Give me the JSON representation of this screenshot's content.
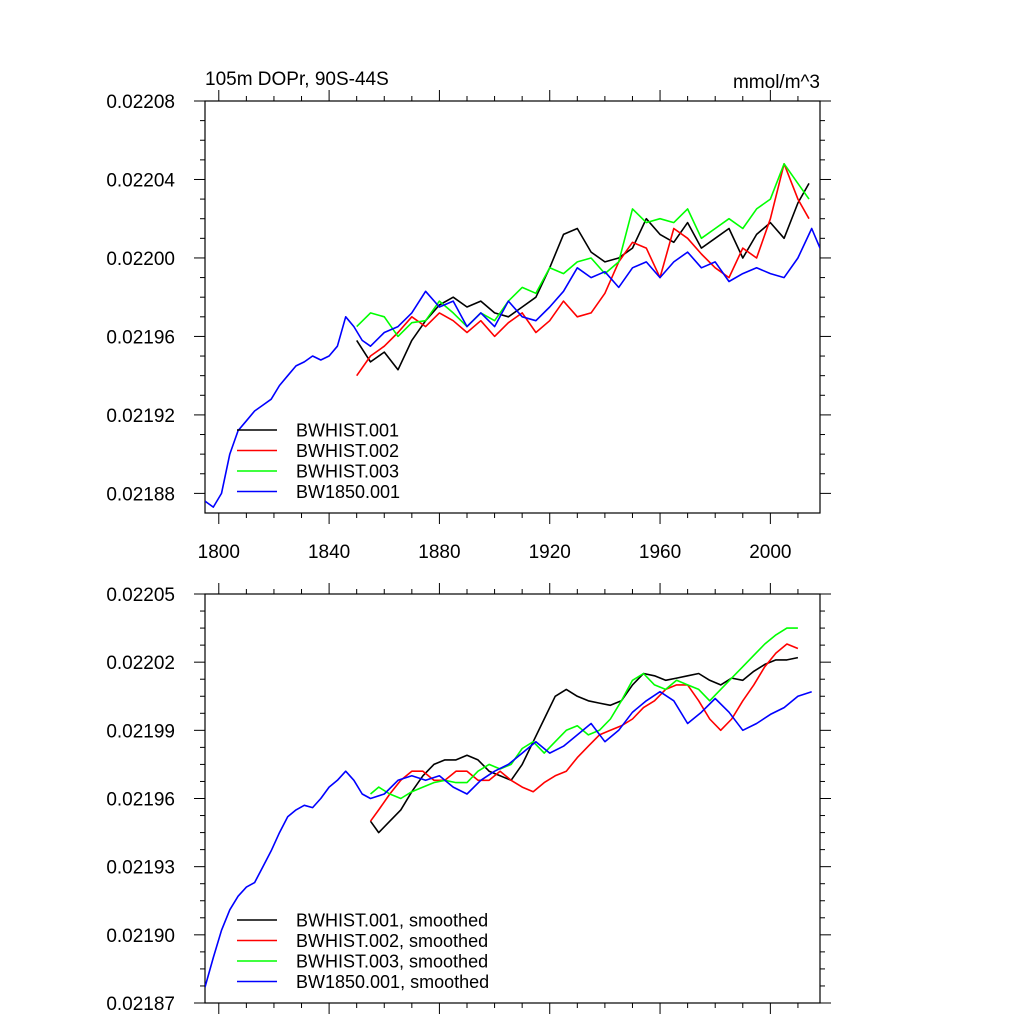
{
  "chart_data": [
    {
      "type": "line",
      "title_left": "105m DOPr, 90S-44S",
      "title_right": "mmol/m^3",
      "xlim": [
        1795,
        2018
      ],
      "ylim": [
        0.02187,
        0.02208
      ],
      "x_ticks": [
        1800,
        1840,
        1880,
        1920,
        1960,
        2000
      ],
      "y_ticks": [
        0.02188,
        0.02192,
        0.02196,
        0.022,
        0.02204,
        0.02208
      ],
      "y_tick_labels": [
        "0.02188",
        "0.02192",
        "0.02196",
        "0.02200",
        "0.02204",
        "0.02208"
      ],
      "legend_position": "bottom-left",
      "series": [
        {
          "name": "BWHIST.001",
          "color": "#000000",
          "x": [
            1850,
            1855,
            1860,
            1865,
            1870,
            1875,
            1880,
            1885,
            1890,
            1895,
            1900,
            1905,
            1910,
            1915,
            1920,
            1925,
            1930,
            1935,
            1940,
            1945,
            1950,
            1955,
            1960,
            1965,
            1970,
            1975,
            1980,
            1985,
            1990,
            1995,
            2000,
            2005,
            2010,
            2014
          ],
          "y": [
            0.021958,
            0.021947,
            0.021952,
            0.021943,
            0.021958,
            0.021968,
            0.021976,
            0.02198,
            0.021975,
            0.021978,
            0.021972,
            0.02197,
            0.021975,
            0.02198,
            0.021995,
            0.022012,
            0.022015,
            0.022003,
            0.021998,
            0.022,
            0.022005,
            0.02202,
            0.022012,
            0.022008,
            0.022018,
            0.022005,
            0.02201,
            0.022015,
            0.022,
            0.022012,
            0.022018,
            0.02201,
            0.022028,
            0.022038
          ]
        },
        {
          "name": "BWHIST.002",
          "color": "#ff0000",
          "x": [
            1850,
            1855,
            1860,
            1865,
            1870,
            1875,
            1880,
            1885,
            1890,
            1895,
            1900,
            1905,
            1910,
            1915,
            1920,
            1925,
            1930,
            1935,
            1940,
            1945,
            1950,
            1955,
            1960,
            1965,
            1970,
            1975,
            1980,
            1985,
            1990,
            1995,
            2000,
            2005,
            2010,
            2014
          ],
          "y": [
            0.02194,
            0.02195,
            0.021955,
            0.021962,
            0.02197,
            0.021965,
            0.021972,
            0.021968,
            0.021962,
            0.021968,
            0.02196,
            0.021967,
            0.021972,
            0.021962,
            0.021968,
            0.021978,
            0.02197,
            0.021972,
            0.021982,
            0.021998,
            0.022008,
            0.022005,
            0.02199,
            0.022015,
            0.02201,
            0.022002,
            0.021995,
            0.02199,
            0.022005,
            0.022,
            0.02202,
            0.022048,
            0.02203,
            0.02202
          ]
        },
        {
          "name": "BWHIST.003",
          "color": "#00ff00",
          "x": [
            1850,
            1855,
            1860,
            1865,
            1870,
            1875,
            1880,
            1885,
            1890,
            1895,
            1900,
            1905,
            1910,
            1915,
            1920,
            1925,
            1930,
            1935,
            1940,
            1945,
            1950,
            1955,
            1960,
            1965,
            1970,
            1975,
            1980,
            1985,
            1990,
            1995,
            2000,
            2005,
            2010,
            2014
          ],
          "y": [
            0.021965,
            0.021972,
            0.02197,
            0.02196,
            0.021967,
            0.021968,
            0.021978,
            0.021972,
            0.021965,
            0.021972,
            0.021968,
            0.021978,
            0.021985,
            0.021982,
            0.021995,
            0.021992,
            0.021998,
            0.022,
            0.021992,
            0.021998,
            0.022025,
            0.022018,
            0.02202,
            0.022018,
            0.022025,
            0.02201,
            0.022015,
            0.02202,
            0.022015,
            0.022025,
            0.02203,
            0.022048,
            0.022038,
            0.02203
          ]
        },
        {
          "name": "BW1850.001",
          "color": "#0000ff",
          "x": [
            1795,
            1798,
            1801,
            1804,
            1807,
            1810,
            1813,
            1816,
            1819,
            1822,
            1825,
            1828,
            1831,
            1834,
            1837,
            1840,
            1843,
            1846,
            1849,
            1852,
            1855,
            1860,
            1865,
            1870,
            1875,
            1880,
            1885,
            1890,
            1895,
            1900,
            1905,
            1910,
            1915,
            1920,
            1925,
            1930,
            1935,
            1940,
            1945,
            1950,
            1955,
            1960,
            1965,
            1970,
            1975,
            1980,
            1985,
            1990,
            1995,
            2000,
            2005,
            2010,
            2015,
            2018
          ],
          "y": [
            0.021876,
            0.021873,
            0.02188,
            0.0219,
            0.021912,
            0.021917,
            0.021922,
            0.021925,
            0.021928,
            0.021935,
            0.02194,
            0.021945,
            0.021947,
            0.02195,
            0.021948,
            0.02195,
            0.021955,
            0.02197,
            0.021965,
            0.021958,
            0.021955,
            0.021962,
            0.021965,
            0.021972,
            0.021983,
            0.021975,
            0.021978,
            0.021965,
            0.021972,
            0.021965,
            0.021978,
            0.02197,
            0.021968,
            0.021975,
            0.021983,
            0.021995,
            0.02199,
            0.021993,
            0.021985,
            0.021995,
            0.021998,
            0.02199,
            0.021998,
            0.022003,
            0.021995,
            0.021998,
            0.021988,
            0.021992,
            0.021995,
            0.021992,
            0.02199,
            0.022,
            0.022015,
            0.022005
          ]
        }
      ]
    },
    {
      "type": "line",
      "xlim": [
        1795,
        2018
      ],
      "ylim": [
        0.02187,
        0.02205
      ],
      "x_ticks": [
        1800,
        1840,
        1880,
        1920,
        1960,
        2000
      ],
      "y_ticks": [
        0.02187,
        0.0219,
        0.02193,
        0.02196,
        0.02199,
        0.02202,
        0.02205
      ],
      "y_tick_labels": [
        "0.02187",
        "0.02190",
        "0.02193",
        "0.02196",
        "0.02199",
        "0.02202",
        "0.02205"
      ],
      "legend_position": "bottom-left",
      "series": [
        {
          "name": "BWHIST.001, smoothed",
          "color": "#000000",
          "x": [
            1855,
            1858,
            1862,
            1866,
            1870,
            1874,
            1878,
            1882,
            1886,
            1890,
            1894,
            1898,
            1902,
            1906,
            1910,
            1914,
            1918,
            1922,
            1926,
            1930,
            1934,
            1938,
            1942,
            1946,
            1950,
            1954,
            1958,
            1962,
            1966,
            1970,
            1974,
            1978,
            1982,
            1986,
            1990,
            1994,
            1998,
            2002,
            2006,
            2010
          ],
          "y": [
            0.02195,
            0.021945,
            0.02195,
            0.021955,
            0.021963,
            0.02197,
            0.021975,
            0.021977,
            0.021977,
            0.021979,
            0.021977,
            0.021972,
            0.02197,
            0.021968,
            0.021975,
            0.021985,
            0.021995,
            0.022005,
            0.022008,
            0.022005,
            0.022003,
            0.022002,
            0.022001,
            0.022003,
            0.02201,
            0.022015,
            0.022014,
            0.022012,
            0.022013,
            0.022014,
            0.022015,
            0.022012,
            0.02201,
            0.022013,
            0.022012,
            0.022016,
            0.022019,
            0.022021,
            0.022021,
            0.022022
          ]
        },
        {
          "name": "BWHIST.002, smoothed",
          "color": "#ff0000",
          "x": [
            1855,
            1858,
            1862,
            1866,
            1870,
            1874,
            1878,
            1882,
            1886,
            1890,
            1894,
            1898,
            1902,
            1906,
            1910,
            1914,
            1918,
            1922,
            1926,
            1930,
            1934,
            1938,
            1942,
            1946,
            1950,
            1954,
            1958,
            1962,
            1966,
            1970,
            1974,
            1978,
            1982,
            1986,
            1990,
            1994,
            1998,
            2002,
            2006,
            2010
          ],
          "y": [
            0.02195,
            0.021955,
            0.021962,
            0.021968,
            0.021972,
            0.021972,
            0.021968,
            0.021968,
            0.021972,
            0.021972,
            0.021968,
            0.021968,
            0.021972,
            0.021968,
            0.021965,
            0.021963,
            0.021967,
            0.02197,
            0.021972,
            0.021978,
            0.021983,
            0.021988,
            0.02199,
            0.021992,
            0.021995,
            0.022,
            0.022003,
            0.022008,
            0.02201,
            0.02201,
            0.022003,
            0.021995,
            0.02199,
            0.021995,
            0.022003,
            0.02201,
            0.022018,
            0.022024,
            0.022028,
            0.022026
          ]
        },
        {
          "name": "BWHIST.003, smoothed",
          "color": "#00ff00",
          "x": [
            1855,
            1858,
            1862,
            1866,
            1870,
            1874,
            1878,
            1882,
            1886,
            1890,
            1894,
            1898,
            1902,
            1906,
            1910,
            1914,
            1918,
            1922,
            1926,
            1930,
            1934,
            1938,
            1942,
            1946,
            1950,
            1954,
            1958,
            1962,
            1966,
            1970,
            1974,
            1978,
            1982,
            1986,
            1990,
            1994,
            1998,
            2002,
            2006,
            2010
          ],
          "y": [
            0.021962,
            0.021965,
            0.021962,
            0.02196,
            0.021963,
            0.021965,
            0.021967,
            0.021968,
            0.021967,
            0.021967,
            0.021972,
            0.021975,
            0.021973,
            0.021975,
            0.021982,
            0.021985,
            0.02198,
            0.021985,
            0.02199,
            0.021992,
            0.021988,
            0.02199,
            0.021995,
            0.022003,
            0.022012,
            0.022015,
            0.02201,
            0.022008,
            0.022012,
            0.02201,
            0.022008,
            0.022003,
            0.022008,
            0.022013,
            0.022018,
            0.022023,
            0.022028,
            0.022032,
            0.022035,
            0.022035
          ]
        },
        {
          "name": "BW1850.001, smoothed",
          "color": "#0000ff",
          "x": [
            1795,
            1798,
            1801,
            1804,
            1807,
            1810,
            1813,
            1816,
            1819,
            1822,
            1825,
            1828,
            1831,
            1834,
            1837,
            1840,
            1843,
            1846,
            1849,
            1852,
            1855,
            1860,
            1865,
            1870,
            1875,
            1880,
            1885,
            1890,
            1895,
            1900,
            1905,
            1910,
            1915,
            1920,
            1925,
            1930,
            1935,
            1940,
            1945,
            1950,
            1955,
            1960,
            1965,
            1970,
            1975,
            1980,
            1985,
            1990,
            1995,
            2000,
            2005,
            2010,
            2015
          ],
          "y": [
            0.021877,
            0.02189,
            0.021902,
            0.021911,
            0.021917,
            0.021921,
            0.021923,
            0.02193,
            0.021937,
            0.021945,
            0.021952,
            0.021955,
            0.021957,
            0.021956,
            0.02196,
            0.021965,
            0.021968,
            0.021972,
            0.021968,
            0.021962,
            0.02196,
            0.021962,
            0.021968,
            0.02197,
            0.021968,
            0.02197,
            0.021965,
            0.021962,
            0.021968,
            0.021972,
            0.021975,
            0.02198,
            0.021985,
            0.02198,
            0.021983,
            0.021988,
            0.021993,
            0.021985,
            0.02199,
            0.021998,
            0.022003,
            0.022007,
            0.022003,
            0.021993,
            0.021998,
            0.022004,
            0.021998,
            0.02199,
            0.021993,
            0.021997,
            0.022,
            0.022005,
            0.022007
          ]
        }
      ]
    }
  ]
}
